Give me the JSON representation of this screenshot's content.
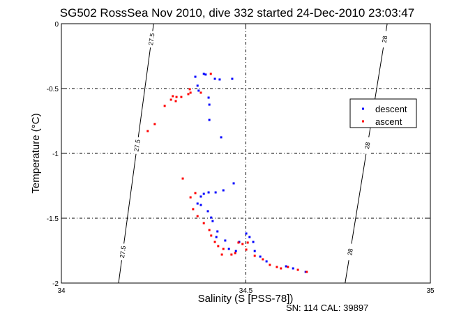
{
  "chart_data": {
    "type": "scatter",
    "title": "SG502 RossSea Nov 2010, dive 332 started 24-Dec-2010 23:03:47",
    "xlabel": "Salinity (S [PSS-78])",
    "ylabel": "Temperature (°C)",
    "footer": "SN: 114  CAL: 39897",
    "xlim": [
      34,
      35
    ],
    "ylim": [
      -2,
      0
    ],
    "xticks": [
      34,
      34.5,
      35
    ],
    "xtick_labels": [
      "34",
      "34.5",
      "35"
    ],
    "yticks": [
      0,
      -0.5,
      -1,
      -1.5,
      -2
    ],
    "ytick_labels": [
      "0",
      "-0.5",
      "-1",
      "-1.5",
      "-2"
    ],
    "grid": true,
    "legend_position": "right",
    "density_contours": [
      {
        "label": "27.5",
        "points": [
          [
            34.155,
            -2
          ],
          [
            34.25,
            0
          ]
        ]
      },
      {
        "label": "28",
        "points": [
          [
            34.769,
            -2
          ],
          [
            34.883,
            0
          ]
        ]
      }
    ],
    "series": [
      {
        "name": "descent",
        "color": "#0000ff",
        "points": [
          [
            34.363,
            -0.409
          ],
          [
            34.369,
            -0.478
          ],
          [
            34.386,
            -0.387
          ],
          [
            34.391,
            -0.392
          ],
          [
            34.416,
            -0.425
          ],
          [
            34.429,
            -0.43
          ],
          [
            34.463,
            -0.425
          ],
          [
            34.372,
            -0.516
          ],
          [
            34.399,
            -0.57
          ],
          [
            34.401,
            -0.624
          ],
          [
            34.401,
            -0.742
          ],
          [
            34.433,
            -0.876
          ],
          [
            34.467,
            -1.231
          ],
          [
            34.439,
            -1.285
          ],
          [
            34.418,
            -1.301
          ],
          [
            34.399,
            -1.301
          ],
          [
            34.386,
            -1.312
          ],
          [
            34.378,
            -1.333
          ],
          [
            34.369,
            -1.387
          ],
          [
            34.378,
            -1.398
          ],
          [
            34.397,
            -1.446
          ],
          [
            34.406,
            -1.495
          ],
          [
            34.41,
            -1.522
          ],
          [
            34.423,
            -1.602
          ],
          [
            34.42,
            -1.645
          ],
          [
            34.444,
            -1.672
          ],
          [
            34.454,
            -1.737
          ],
          [
            34.473,
            -1.753
          ],
          [
            34.482,
            -1.683
          ],
          [
            34.501,
            -1.618
          ],
          [
            34.51,
            -1.645
          ],
          [
            34.52,
            -1.683
          ],
          [
            34.524,
            -1.753
          ],
          [
            34.539,
            -1.796
          ],
          [
            34.556,
            -1.833
          ],
          [
            34.609,
            -1.871
          ],
          [
            34.628,
            -1.887
          ],
          [
            34.662,
            -1.914
          ]
        ]
      },
      {
        "name": "ascent",
        "color": "#ff0000",
        "points": [
          [
            34.405,
            -0.387
          ],
          [
            34.378,
            -0.532
          ],
          [
            34.35,
            -0.532
          ],
          [
            34.348,
            -0.505
          ],
          [
            34.344,
            -0.543
          ],
          [
            34.325,
            -0.565
          ],
          [
            34.312,
            -0.565
          ],
          [
            34.302,
            -0.559
          ],
          [
            34.31,
            -0.597
          ],
          [
            34.297,
            -0.586
          ],
          [
            34.28,
            -0.634
          ],
          [
            34.253,
            -0.774
          ],
          [
            34.234,
            -0.828
          ],
          [
            34.329,
            -1.194
          ],
          [
            34.363,
            -1.306
          ],
          [
            34.35,
            -1.339
          ],
          [
            34.357,
            -1.43
          ],
          [
            34.369,
            -1.484
          ],
          [
            34.386,
            -1.538
          ],
          [
            34.401,
            -1.591
          ],
          [
            34.406,
            -1.634
          ],
          [
            34.416,
            -1.683
          ],
          [
            34.425,
            -1.715
          ],
          [
            34.439,
            -1.737
          ],
          [
            34.435,
            -1.78
          ],
          [
            34.461,
            -1.78
          ],
          [
            34.471,
            -1.769
          ],
          [
            34.48,
            -1.688
          ],
          [
            34.491,
            -1.699
          ],
          [
            34.501,
            -1.742
          ],
          [
            34.505,
            -1.688
          ],
          [
            34.524,
            -1.79
          ],
          [
            34.546,
            -1.817
          ],
          [
            34.565,
            -1.86
          ],
          [
            34.584,
            -1.876
          ],
          [
            34.595,
            -1.887
          ],
          [
            34.614,
            -1.876
          ],
          [
            34.641,
            -1.898
          ],
          [
            34.665,
            -1.914
          ]
        ]
      }
    ]
  }
}
